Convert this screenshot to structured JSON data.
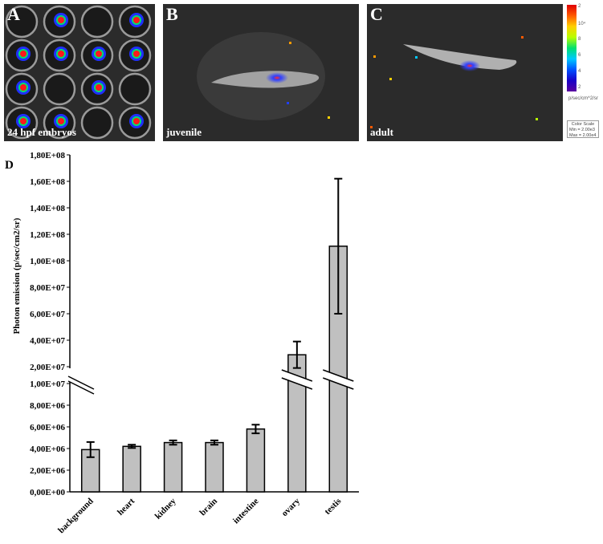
{
  "panels": [
    {
      "letter": "A",
      "caption": "24 hpf embryos"
    },
    {
      "letter": "B",
      "caption": "juvenile"
    },
    {
      "letter": "C",
      "caption": "adult"
    }
  ],
  "color_scale": {
    "ticks": [
      "2",
      "10⁴",
      "8",
      "6",
      "4",
      "2"
    ],
    "unit": "p/sec/cm^2/sr",
    "title": "Color Scale",
    "min": "Min = 2.00e3",
    "max": "Max = 2.00e4",
    "colors": [
      "#e00000",
      "#ffd000",
      "#00e070",
      "#0050ff",
      "#5a00a0"
    ]
  },
  "panel_d": {
    "letter": "D"
  },
  "chart_data": {
    "type": "bar",
    "categories": [
      "background",
      "heart",
      "kidney",
      "brain",
      "intestine",
      "ovary",
      "testis"
    ],
    "values": [
      3900000,
      4200000,
      4550000,
      4550000,
      5800000,
      29000000,
      111000000
    ],
    "errors": [
      700000,
      150000,
      200000,
      200000,
      400000,
      10000000,
      51000000
    ],
    "ylabel": "Photon emission (p/sec/cm2/sr)",
    "y_axis_lower": {
      "range": [
        0,
        10000000
      ],
      "ticks": [
        "0,00E+00",
        "2,00E+06",
        "4,00E+06",
        "6,00E+06",
        "8,00E+06",
        "1,00E+07"
      ]
    },
    "y_axis_upper": {
      "range": [
        20000000,
        180000000
      ],
      "ticks": [
        "2,00E+07",
        "4,00E+07",
        "6,00E+07",
        "8,00E+07",
        "1,00E+08",
        "1,20E+08",
        "1,40E+08",
        "1,60E+08",
        "1,80E+08"
      ]
    },
    "broken_axis": true,
    "bar_color": "#c0c0c0",
    "grid": false
  }
}
